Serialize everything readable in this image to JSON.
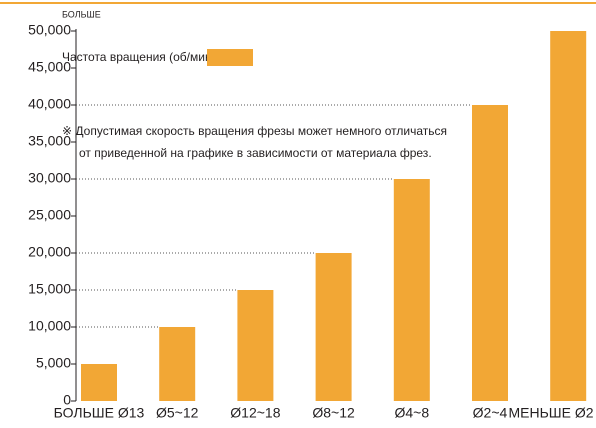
{
  "chart_data": {
    "type": "bar",
    "y_axis_label": "БОЛЬШЕ",
    "annotation": [
      "※ Допустимая скорость вращения фрезы может немного отличаться",
      "от приведенной на графике в зависимости от материала фрез."
    ],
    "categories": [
      "БОЛЬШЕ Ø13",
      "Ø5~12",
      "Ø12~18",
      "Ø8~12",
      "Ø4~8",
      "Ø2~4",
      "МЕНЬШЕ Ø2"
    ],
    "series": [
      {
        "name": "Частота вращения (об/мин)",
        "color": "#f2a735",
        "values": [
          5000,
          10000,
          15000,
          20000,
          30000,
          40000,
          50000
        ]
      }
    ],
    "ylim": [
      0,
      50000
    ],
    "yticks": [
      0,
      {
        "value": 5000,
        "label": "5,000"
      },
      {
        "value": 10000,
        "label": "10,000"
      },
      {
        "value": 15000,
        "label": "15,000"
      },
      {
        "value": 20000,
        "label": "20,000"
      },
      {
        "value": 25000,
        "label": "25,000"
      },
      {
        "value": 30000,
        "label": "30,000"
      },
      {
        "value": 35000,
        "label": "35,000"
      },
      {
        "value": 40000,
        "label": "40,000"
      },
      {
        "value": 45000,
        "label": "45,000"
      },
      {
        "value": 50000,
        "label": "50,000"
      }
    ],
    "grid": false
  }
}
